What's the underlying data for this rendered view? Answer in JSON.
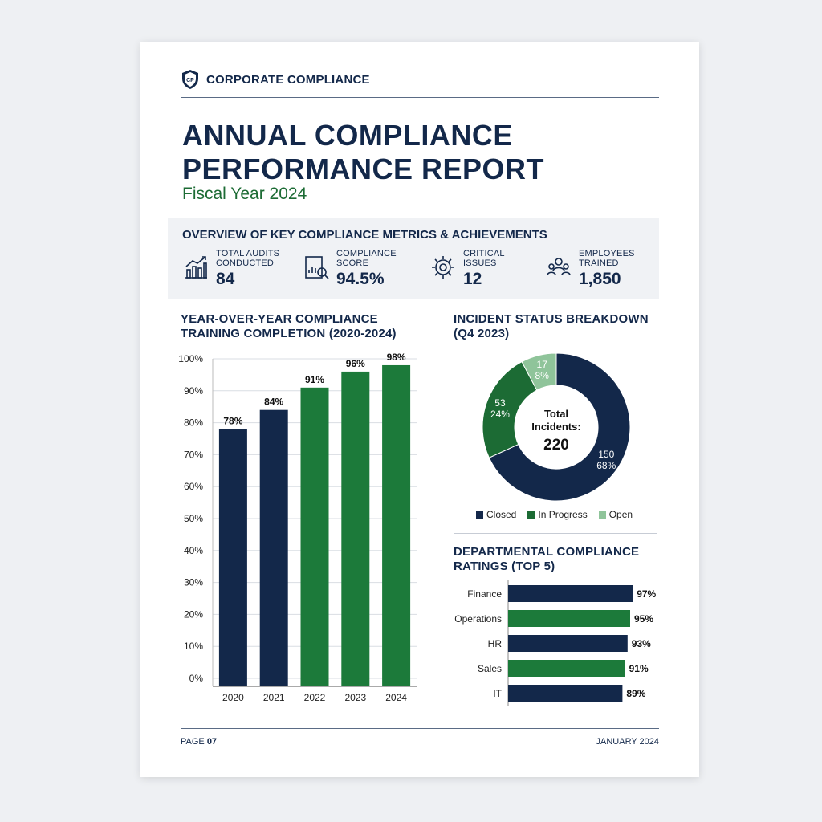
{
  "header": {
    "brand_badge": "CP",
    "brand": "CORPORATE COMPLIANCE",
    "title_line1": "ANNUAL COMPLIANCE",
    "title_line2": "PERFORMANCE REPORT",
    "subtitle": "Fiscal Year 2024"
  },
  "overview": {
    "title": "OVERVIEW OF KEY COMPLIANCE METRICS & ACHIEVEMENTS",
    "metrics": [
      {
        "label_line1": "TOTAL AUDITS",
        "label_line2": "CONDUCTED",
        "value": "84",
        "icon": "chart-icon"
      },
      {
        "label_line1": "COMPLIANCE",
        "label_line2": "SCORE",
        "value": "94.5%",
        "icon": "report-icon"
      },
      {
        "label_line1": "CRITICAL",
        "label_line2": "ISSUES",
        "value": "12",
        "icon": "gear-icon"
      },
      {
        "label_line1": "EMPLOYEES",
        "label_line2": "TRAINED",
        "value": "1,850",
        "icon": "people-icon"
      }
    ]
  },
  "bar_section": {
    "title_line1": "YEAR-OVER-YEAR COMPLIANCE",
    "title_line2": "TRAINING COMPLETION (2020-2024)"
  },
  "donut_section": {
    "title_line1": "INCIDENT STATUS BREAKDOWN",
    "title_line2": "(Q4 2023)",
    "center_label_line1": "Total",
    "center_label_line2": "Incidents:",
    "center_value": "220"
  },
  "hbar_section": {
    "title_line1": "DEPARTMENTAL COMPLIANCE",
    "title_line2": "RATINGS (TOP 5)"
  },
  "footer": {
    "page_prefix": "PAGE ",
    "page_number": "07",
    "date": "JANUARY 2024"
  },
  "colors": {
    "navy": "#13284a",
    "green": "#1c7a3a",
    "light_green": "#8fc49a"
  },
  "chart_data": [
    {
      "type": "bar",
      "categories": [
        "2020",
        "2021",
        "2022",
        "2023",
        "2024"
      ],
      "values": [
        78,
        84,
        91,
        96,
        98
      ],
      "data_labels": [
        "78%",
        "84%",
        "91%",
        "96%",
        "98%"
      ],
      "bar_colors": [
        "#13284a",
        "#13284a",
        "#1c7a3a",
        "#1c7a3a",
        "#1c7a3a"
      ],
      "yticks": [
        "0%",
        "10%",
        "20%",
        "30%",
        "40%",
        "50%",
        "60%",
        "70%",
        "80%",
        "90%",
        "100%"
      ],
      "ylim": [
        0,
        100
      ],
      "grid": true
    },
    {
      "type": "pie",
      "labels": [
        "Closed",
        "In Progress",
        "Open"
      ],
      "values": [
        150,
        53,
        17
      ],
      "percent_labels": [
        "68%",
        "24%",
        "8%"
      ],
      "colors": [
        "#13284a",
        "#1c6b34",
        "#8fc49a"
      ],
      "legend": "bottom"
    },
    {
      "type": "bar",
      "orientation": "horizontal",
      "categories": [
        "Finance",
        "Operations",
        "HR",
        "Sales",
        "IT"
      ],
      "values": [
        97,
        95,
        93,
        91,
        89
      ],
      "data_labels": [
        "97%",
        "95%",
        "93%",
        "91%",
        "89%"
      ],
      "bar_colors": [
        "#13284a",
        "#1c7a3a",
        "#13284a",
        "#1c7a3a",
        "#13284a"
      ]
    }
  ]
}
